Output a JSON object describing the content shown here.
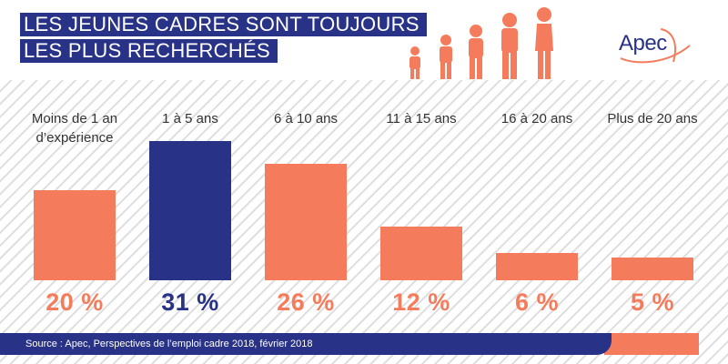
{
  "title": {
    "line1": "LES JEUNES CADRES SONT TOUJOURS",
    "line2": "LES PLUS RECHERCHÉS"
  },
  "logo": {
    "text": "Apec"
  },
  "colors": {
    "brand_blue": "#283286",
    "accent_orange": "#f47c5c",
    "hatch_gray": "#dcdcdc"
  },
  "icons": {
    "people": "people-silhouettes-icon"
  },
  "chart_data": {
    "type": "bar",
    "title": "LES JEUNES CADRES SONT TOUJOURS LES PLUS RECHERCHÉS",
    "categories": [
      "Moins de 1 an d’expérience",
      "1 à 5 ans",
      "6 à 10 ans",
      "11 à 15 ans",
      "16 à 20 ans",
      "Plus de 20 ans"
    ],
    "values": [
      20,
      31,
      26,
      12,
      6,
      5
    ],
    "value_labels": [
      "20 %",
      "31 %",
      "26 %",
      "12 %",
      "6 %",
      "5 %"
    ],
    "unit": "%",
    "highlight_index": 1,
    "xlabel": "",
    "ylabel": "",
    "ylim": [
      0,
      31
    ],
    "grid": false,
    "legend": "none"
  },
  "footer": {
    "source": "Source : Apec, Perspectives de l’emploi cadre 2018, février 2018"
  }
}
